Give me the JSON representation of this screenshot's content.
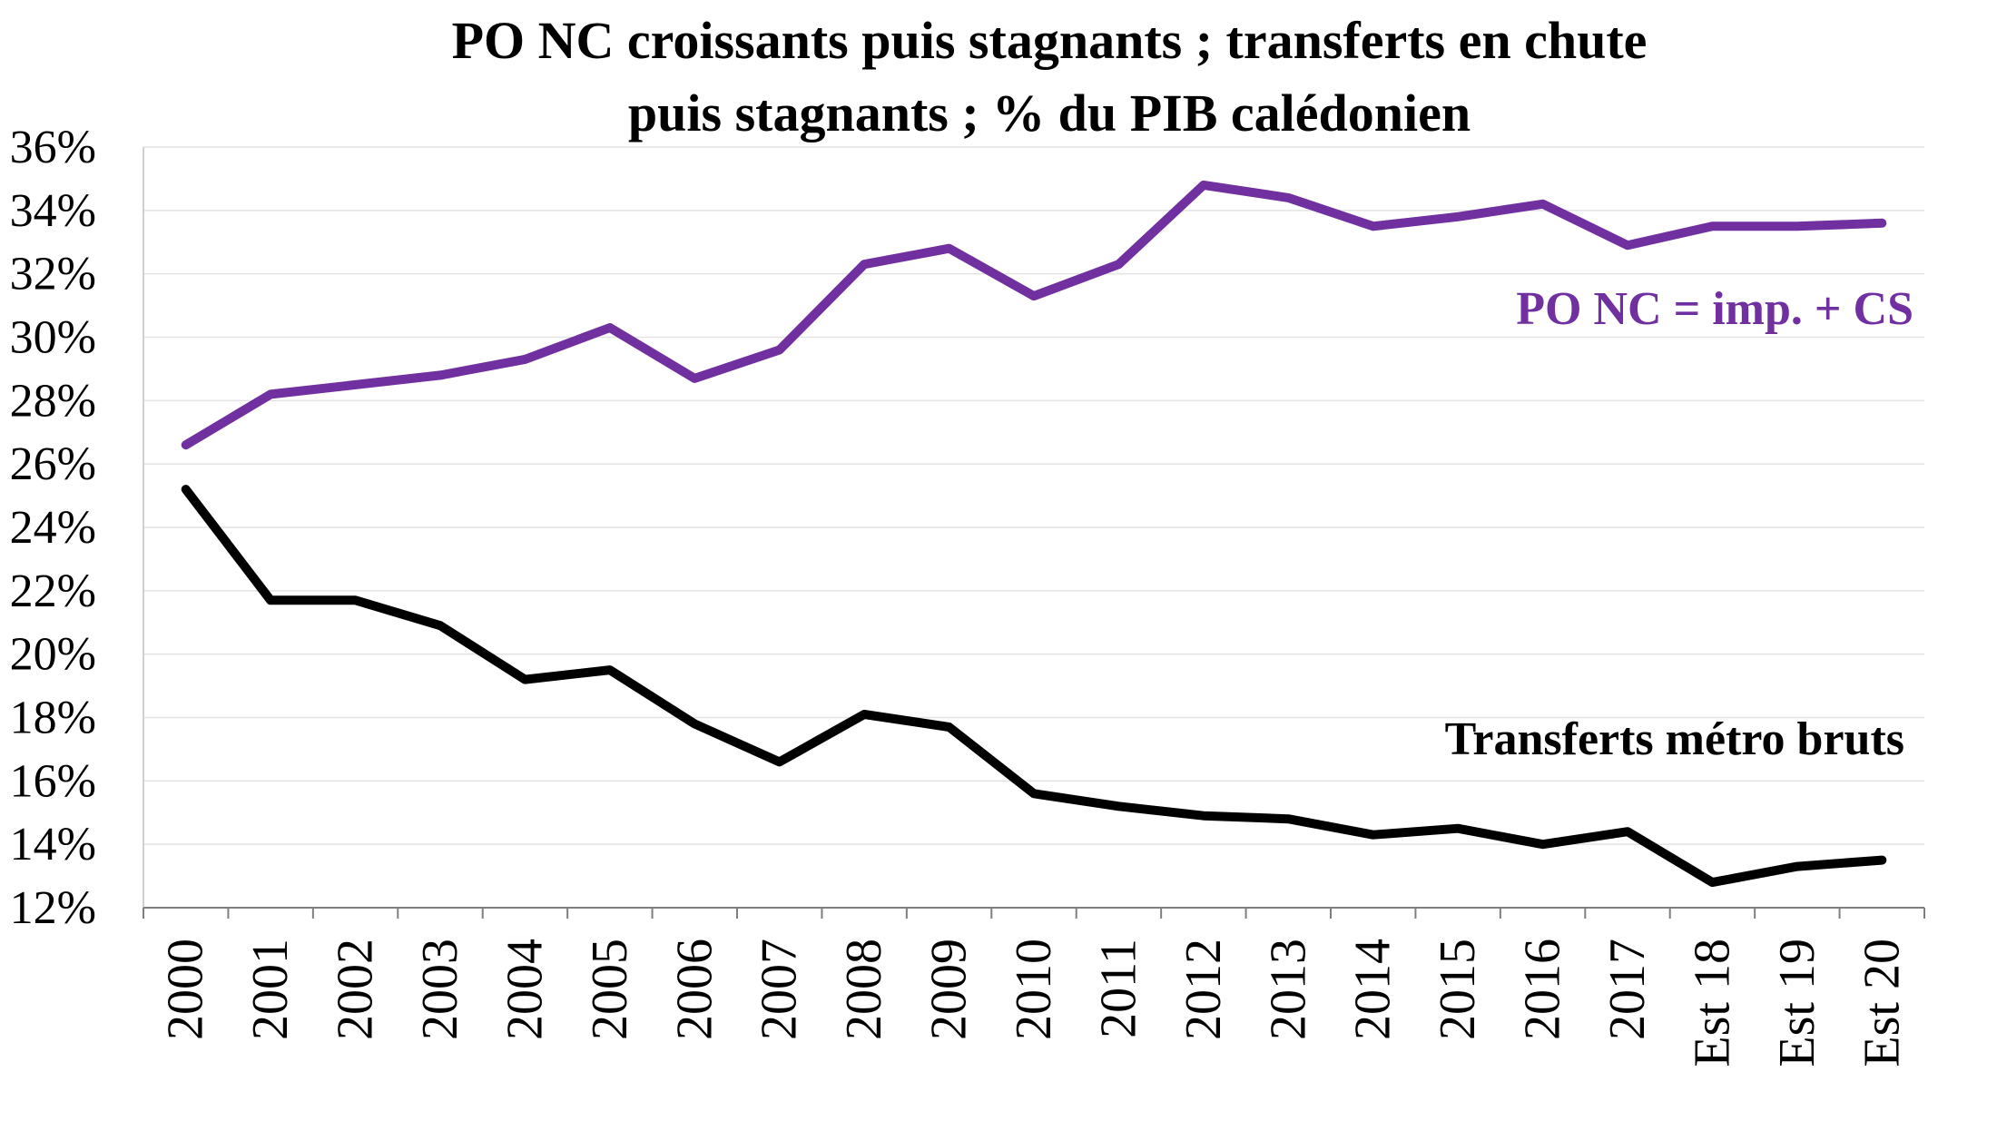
{
  "chart_data": {
    "type": "line",
    "title_lines": [
      "PO NC croissants puis stagnants ; transferts en chute",
      "puis stagnants ; % du PIB calédonien"
    ],
    "xlabel": "",
    "ylabel": "",
    "ylim": [
      12,
      36
    ],
    "yticks": [
      "12%",
      "14%",
      "16%",
      "18%",
      "20%",
      "22%",
      "24%",
      "26%",
      "28%",
      "30%",
      "32%",
      "34%",
      "36%"
    ],
    "categories": [
      "2000",
      "2001",
      "2002",
      "2003",
      "2004",
      "2005",
      "2006",
      "2007",
      "2008",
      "2009",
      "2010",
      "2011",
      "2012",
      "2013",
      "2014",
      "2015",
      "2016",
      "2017",
      "Est 18",
      "Est 19",
      "Est 20"
    ],
    "grid": "horizontal",
    "legend": "inline labels",
    "series": [
      {
        "name": "PO NC = imp. + CS",
        "color": "#7030a0",
        "values": [
          26.6,
          28.2,
          28.5,
          28.8,
          29.3,
          30.3,
          28.7,
          29.6,
          32.3,
          32.8,
          31.3,
          32.3,
          34.8,
          34.4,
          33.5,
          33.8,
          34.2,
          32.9,
          33.5,
          33.5,
          33.6
        ]
      },
      {
        "name": "Transferts métro bruts",
        "color": "#000000",
        "values": [
          25.2,
          21.7,
          21.7,
          20.9,
          19.2,
          19.5,
          17.8,
          16.6,
          18.1,
          17.7,
          15.6,
          15.2,
          14.9,
          14.8,
          14.3,
          14.5,
          14.0,
          14.4,
          12.8,
          13.3,
          13.5
        ]
      }
    ]
  }
}
